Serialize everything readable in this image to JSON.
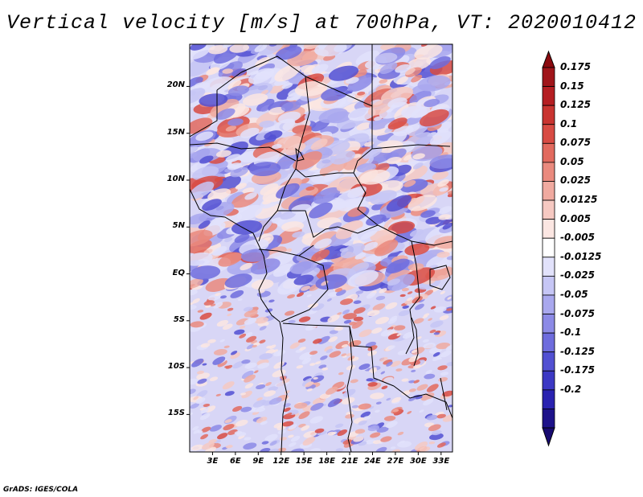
{
  "title": "Vertical velocity [m/s] at 700hPa, VT: 2020010412",
  "credit": "GrADS: IGES/COLA",
  "latitude_labels": [
    "20N",
    "15N",
    "10N",
    "5N",
    "EQ",
    "5S",
    "10S",
    "15S"
  ],
  "longitude_labels": [
    "3E",
    "6E",
    "9E",
    "12E",
    "15E",
    "18E",
    "21E",
    "24E",
    "27E",
    "30E",
    "33E"
  ],
  "colorbar": {
    "labels": [
      "0.175",
      "0.15",
      "0.125",
      "0.1",
      "0.075",
      "0.05",
      "0.025",
      "0.0125",
      "0.005",
      "-0.005",
      "-0.0125",
      "-0.025",
      "-0.05",
      "-0.075",
      "-0.1",
      "-0.125",
      "-0.175",
      "-0.2"
    ],
    "colors": [
      "#a0151a",
      "#b51e22",
      "#c93430",
      "#d84b43",
      "#e26a5e",
      "#ea8a7e",
      "#f0aaa0",
      "#f6c9c2",
      "#fbe6e2",
      "#ffffff",
      "#e2e2fb",
      "#c6c6f5",
      "#a9a8ee",
      "#8c8ae6",
      "#6e6cdd",
      "#5250d2",
      "#3c38c4",
      "#2a22b0",
      "#1d128a"
    ],
    "top_cap_color": "#8b0a0f",
    "bottom_cap_color": "#170a70"
  },
  "map": {
    "lon_range": [
      0,
      34.5
    ],
    "lat_range": [
      -19,
      24.5
    ],
    "field_colors": {
      "positive": [
        "#fbe6e2",
        "#f6c9c2",
        "#f0aaa0",
        "#ea8a7e",
        "#e26a5e",
        "#d84b43"
      ],
      "negative": [
        "#e2e2fb",
        "#c6c6f5",
        "#a9a8ee",
        "#8c8ae6",
        "#6e6cdd",
        "#5250d2"
      ],
      "neutral": "#ffffff"
    }
  }
}
